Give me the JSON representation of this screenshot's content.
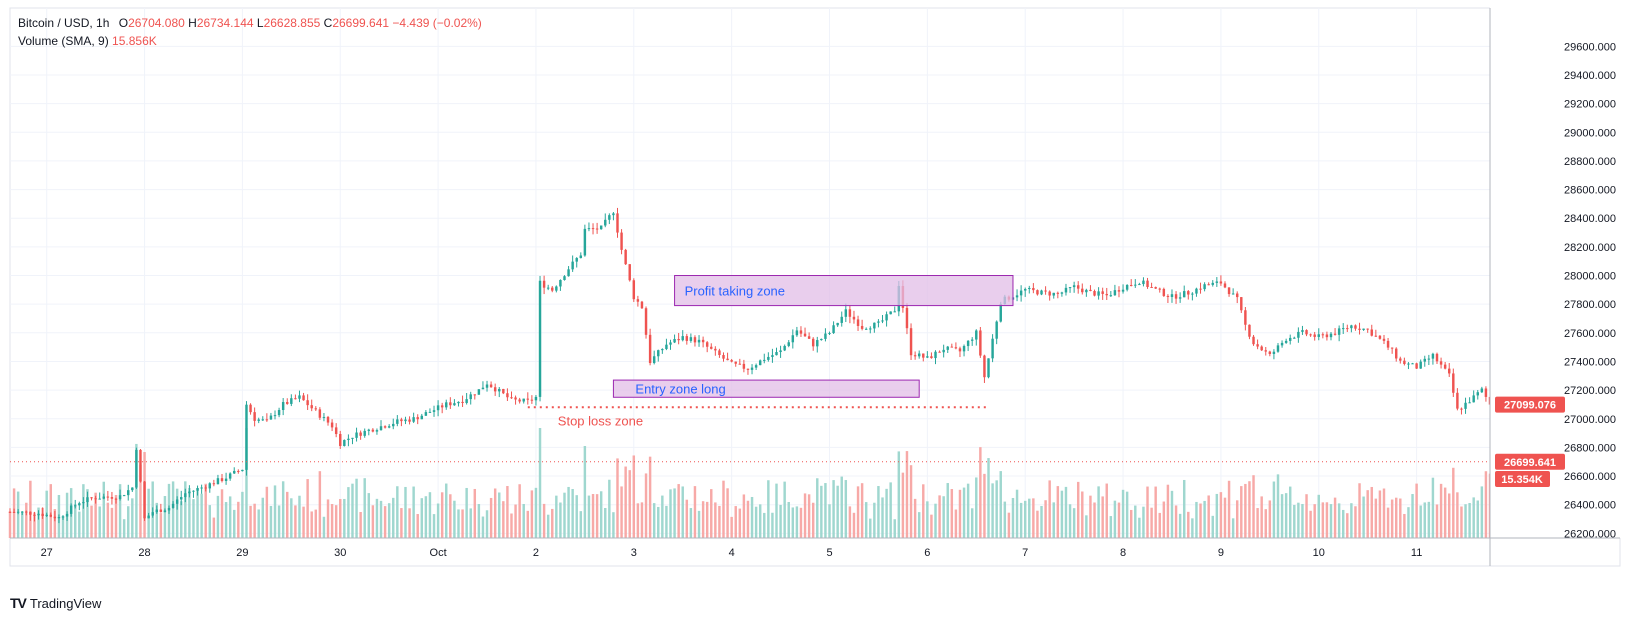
{
  "legend": {
    "symbol": "Bitcoin / USD, 1h",
    "o_label": "O",
    "o": "26704.080",
    "h_label": "H",
    "h": "26734.144",
    "l_label": "L",
    "l": "26628.855",
    "c_label": "C",
    "c": "26699.641",
    "change": "−4.439 (−0.02%)",
    "volume_label": "Volume (SMA, 9)",
    "volume_value": "15.856K"
  },
  "brand": {
    "name": "TradingView"
  },
  "colors": {
    "up": "#26a69a",
    "down": "#ef5350",
    "vol_up": "#9fd7cf",
    "vol_down": "#f7a9a7",
    "zone": "#e1bee7",
    "zone_border": "#9c27b0"
  },
  "chart_data": {
    "type": "candlestick",
    "ylim": [
      26000,
      29700
    ],
    "y_ticks": [
      "29600.000",
      "29400.000",
      "29200.000",
      "29000.000",
      "28800.000",
      "28600.000",
      "28400.000",
      "28200.000",
      "28000.000",
      "27800.000",
      "27600.000",
      "27400.000",
      "27200.000",
      "27000.000",
      "26800.000",
      "26600.000",
      "26400.000",
      "26200.000"
    ],
    "x_ticks": [
      {
        "label": "27",
        "x": 0
      },
      {
        "label": "28",
        "x": 24
      },
      {
        "label": "29",
        "x": 48
      },
      {
        "label": "30",
        "x": 72
      },
      {
        "label": "Oct",
        "x": 96
      },
      {
        "label": "2",
        "x": 120
      },
      {
        "label": "3",
        "x": 144
      },
      {
        "label": "4",
        "x": 168
      },
      {
        "label": "5",
        "x": 192
      },
      {
        "label": "6",
        "x": 216
      },
      {
        "label": "7",
        "x": 240
      },
      {
        "label": "8",
        "x": 264
      },
      {
        "label": "9",
        "x": 288
      },
      {
        "label": "10",
        "x": 312
      },
      {
        "label": "11",
        "x": 336
      }
    ],
    "x_range": [
      -9,
      354
    ],
    "anchors": [
      [
        -9,
        26350
      ],
      [
        -2,
        26340
      ],
      [
        3,
        26310
      ],
      [
        8,
        26420
      ],
      [
        12,
        26450
      ],
      [
        18,
        26460
      ],
      [
        21,
        26520
      ],
      [
        22,
        26800
      ],
      [
        24,
        26300
      ],
      [
        26,
        26350
      ],
      [
        30,
        26380
      ],
      [
        34,
        26480
      ],
      [
        38,
        26520
      ],
      [
        44,
        26590
      ],
      [
        48,
        26650
      ],
      [
        49,
        27100
      ],
      [
        51,
        27000
      ],
      [
        54,
        26980
      ],
      [
        58,
        27100
      ],
      [
        62,
        27150
      ],
      [
        66,
        27050
      ],
      [
        70,
        26950
      ],
      [
        72,
        26830
      ],
      [
        75,
        26880
      ],
      [
        80,
        26930
      ],
      [
        86,
        26980
      ],
      [
        90,
        27000
      ],
      [
        94,
        27050
      ],
      [
        98,
        27100
      ],
      [
        102,
        27130
      ],
      [
        106,
        27200
      ],
      [
        108,
        27250
      ],
      [
        112,
        27170
      ],
      [
        114,
        27130
      ],
      [
        118,
        27120
      ],
      [
        120,
        27150
      ],
      [
        121,
        27950
      ],
      [
        124,
        27900
      ],
      [
        128,
        28050
      ],
      [
        131,
        28150
      ],
      [
        132,
        28320
      ],
      [
        136,
        28330
      ],
      [
        139,
        28450
      ],
      [
        141,
        28180
      ],
      [
        144,
        27850
      ],
      [
        146,
        27780
      ],
      [
        148,
        27400
      ],
      [
        152,
        27520
      ],
      [
        156,
        27570
      ],
      [
        160,
        27540
      ],
      [
        164,
        27460
      ],
      [
        168,
        27380
      ],
      [
        172,
        27350
      ],
      [
        176,
        27420
      ],
      [
        180,
        27470
      ],
      [
        184,
        27620
      ],
      [
        188,
        27520
      ],
      [
        192,
        27600
      ],
      [
        196,
        27750
      ],
      [
        200,
        27640
      ],
      [
        204,
        27660
      ],
      [
        208,
        27760
      ],
      [
        209,
        27940
      ],
      [
        212,
        27460
      ],
      [
        216,
        27420
      ],
      [
        220,
        27490
      ],
      [
        224,
        27470
      ],
      [
        228,
        27600
      ],
      [
        230,
        27290
      ],
      [
        234,
        27820
      ],
      [
        240,
        27900
      ],
      [
        244,
        27880
      ],
      [
        248,
        27870
      ],
      [
        252,
        27920
      ],
      [
        256,
        27880
      ],
      [
        260,
        27860
      ],
      [
        264,
        27920
      ],
      [
        268,
        27960
      ],
      [
        272,
        27900
      ],
      [
        276,
        27850
      ],
      [
        280,
        27880
      ],
      [
        284,
        27930
      ],
      [
        288,
        27950
      ],
      [
        292,
        27830
      ],
      [
        294,
        27650
      ],
      [
        296,
        27530
      ],
      [
        300,
        27440
      ],
      [
        304,
        27560
      ],
      [
        308,
        27600
      ],
      [
        312,
        27570
      ],
      [
        316,
        27600
      ],
      [
        320,
        27650
      ],
      [
        324,
        27620
      ],
      [
        328,
        27530
      ],
      [
        330,
        27470
      ],
      [
        332,
        27400
      ],
      [
        336,
        27360
      ],
      [
        340,
        27440
      ],
      [
        344,
        27300
      ],
      [
        346,
        27060
      ],
      [
        350,
        27150
      ],
      [
        352,
        27200
      ],
      [
        354,
        27100
      ]
    ],
    "volume_ylim": [
      0,
      100
    ],
    "annotations": {
      "profit_zone": {
        "label": "Profit taking zone",
        "x1": 154,
        "x2": 237,
        "y1": 27790,
        "y2": 28000
      },
      "entry_zone": {
        "label": "Entry zone long",
        "x1": 139,
        "x2": 214,
        "y1": 27150,
        "y2": 27270
      },
      "stop_loss": {
        "label": "Stop loss zone",
        "x1": 118,
        "x2": 231,
        "y": 27080
      }
    },
    "price_lines": [
      {
        "label": "27099.076",
        "value": 27099.076,
        "color": "#ef5350"
      },
      {
        "label": "26699.641",
        "value": 26699.641,
        "color": "#ef5350"
      }
    ],
    "volume_label": {
      "label": "15.354K",
      "color": "#ef5350"
    }
  }
}
